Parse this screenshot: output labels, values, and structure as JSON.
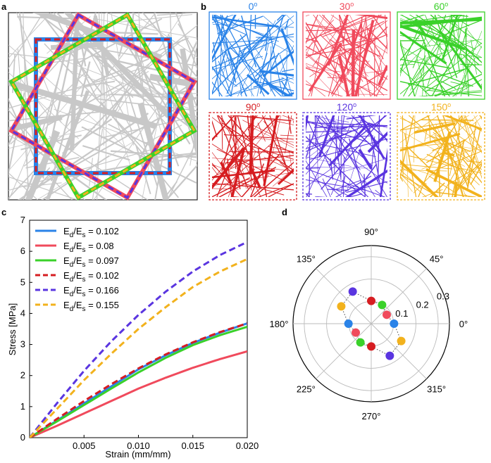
{
  "panels": {
    "a": "a",
    "b": "b",
    "c": "c",
    "d": "d"
  },
  "squares": [
    {
      "angle": "0",
      "deg": "o",
      "color": "#2a83e8"
    },
    {
      "angle": "30",
      "deg": "o",
      "color": "#f04a5c"
    },
    {
      "angle": "60",
      "deg": "o",
      "color": "#3ad12a"
    },
    {
      "angle": "90",
      "deg": "o",
      "color": "#d61d21"
    },
    {
      "angle": "120",
      "deg": "o",
      "color": "#5a35e0"
    },
    {
      "angle": "150",
      "deg": "o",
      "color": "#f2b21d"
    }
  ],
  "chart_data": [
    {
      "type": "line",
      "xlabel": "Strain (mm/mm)",
      "ylabel": "Stress [MPa]",
      "xlim": [
        0,
        0.02
      ],
      "ylim": [
        0,
        7
      ],
      "xticks": [
        "0.005",
        "0.010",
        "0.015",
        "0.020"
      ],
      "yticks": [
        "0",
        "1",
        "2",
        "3",
        "4",
        "5",
        "6",
        "7"
      ],
      "series": [
        {
          "name_main": "E",
          "sub1": "d",
          "mid": "/E",
          "sub2": "s",
          "value": " = 0.102",
          "color": "#2a83e8",
          "dash": "solid",
          "x": [
            0,
            0.0025,
            0.005,
            0.0075,
            0.01,
            0.0125,
            0.015,
            0.0175,
            0.02
          ],
          "y": [
            0,
            0.55,
            1.1,
            1.65,
            2.2,
            2.65,
            3.05,
            3.38,
            3.68
          ]
        },
        {
          "name_main": "E",
          "sub1": "d",
          "mid": "/E",
          "sub2": "s",
          "value": " = 0.08",
          "color": "#f04a5c",
          "dash": "solid",
          "x": [
            0,
            0.0025,
            0.005,
            0.0075,
            0.01,
            0.0125,
            0.015,
            0.0175,
            0.02
          ],
          "y": [
            0,
            0.38,
            0.78,
            1.18,
            1.58,
            1.93,
            2.25,
            2.53,
            2.78
          ]
        },
        {
          "name_main": "E",
          "sub1": "d",
          "mid": "/E",
          "sub2": "s",
          "value": " = 0.097",
          "color": "#3ad12a",
          "dash": "solid",
          "x": [
            0,
            0.0025,
            0.005,
            0.0075,
            0.01,
            0.0125,
            0.015,
            0.0175,
            0.02
          ],
          "y": [
            0,
            0.52,
            1.05,
            1.58,
            2.1,
            2.57,
            2.98,
            3.3,
            3.57
          ]
        },
        {
          "name_main": "E",
          "sub1": "d",
          "mid": "/E",
          "sub2": "s",
          "value": " = 0.102",
          "color": "#d61d21",
          "dash": "dashed",
          "x": [
            0,
            0.0025,
            0.005,
            0.0075,
            0.01,
            0.0125,
            0.015,
            0.0175,
            0.02
          ],
          "y": [
            0,
            0.6,
            1.18,
            1.72,
            2.23,
            2.68,
            3.07,
            3.4,
            3.68
          ]
        },
        {
          "name_main": "E",
          "sub1": "d",
          "mid": "/E",
          "sub2": "s",
          "value": " = 0.166",
          "color": "#5a35e0",
          "dash": "dashed",
          "x": [
            0,
            0.0025,
            0.005,
            0.0075,
            0.01,
            0.0125,
            0.015,
            0.0175,
            0.02
          ],
          "y": [
            0,
            1.1,
            2.15,
            3.1,
            3.95,
            4.7,
            5.35,
            5.88,
            6.3
          ]
        },
        {
          "name_main": "E",
          "sub1": "d",
          "mid": "/E",
          "sub2": "s",
          "value": " = 0.155",
          "color": "#f2b21d",
          "dash": "dashed",
          "x": [
            0,
            0.0025,
            0.005,
            0.0075,
            0.01,
            0.0125,
            0.015,
            0.0175,
            0.02
          ],
          "y": [
            0,
            0.92,
            1.85,
            2.7,
            3.5,
            4.2,
            4.85,
            5.35,
            5.75
          ]
        }
      ]
    },
    {
      "type": "scatter",
      "projection": "polar",
      "angle_labels": [
        "0°",
        "45°",
        "90°",
        "135°",
        "180°",
        "225°",
        "270°",
        "315°"
      ],
      "radial_ticks": [
        "0.1",
        "0.2",
        "0.3"
      ],
      "rmax": 0.35,
      "points": [
        {
          "theta": 0,
          "r": 0.102,
          "color": "#2a83e8"
        },
        {
          "theta": 180,
          "r": 0.102,
          "color": "#2a83e8"
        },
        {
          "theta": 30,
          "r": 0.08,
          "color": "#f04a5c"
        },
        {
          "theta": 210,
          "r": 0.08,
          "color": "#f04a5c"
        },
        {
          "theta": 60,
          "r": 0.097,
          "color": "#3ad12a"
        },
        {
          "theta": 240,
          "r": 0.097,
          "color": "#3ad12a"
        },
        {
          "theta": 90,
          "r": 0.102,
          "color": "#d61d21"
        },
        {
          "theta": 270,
          "r": 0.102,
          "color": "#d61d21"
        },
        {
          "theta": 120,
          "r": 0.166,
          "color": "#5a35e0"
        },
        {
          "theta": 300,
          "r": 0.166,
          "color": "#5a35e0"
        },
        {
          "theta": 150,
          "r": 0.155,
          "color": "#f2b21d"
        },
        {
          "theta": 330,
          "r": 0.155,
          "color": "#f2b21d"
        }
      ]
    }
  ]
}
